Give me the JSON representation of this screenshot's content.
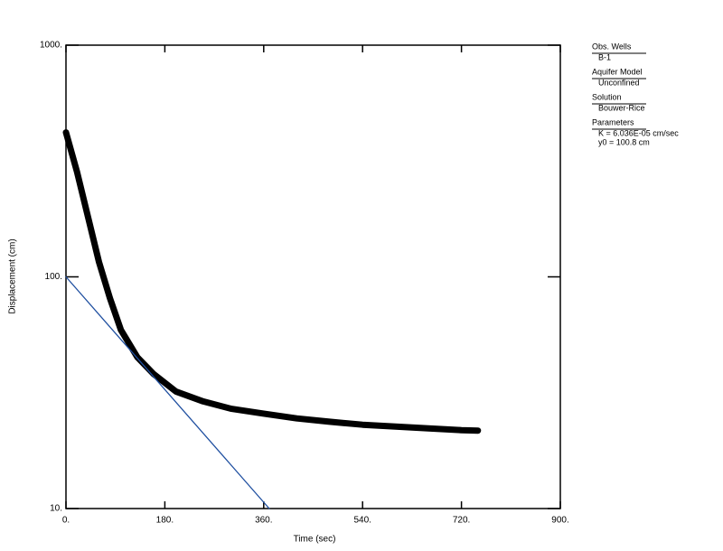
{
  "chart_data": {
    "type": "scatter",
    "x_label": "Time (sec)",
    "y_label": "Displacement (cm)",
    "xlim": [
      0,
      900
    ],
    "ylim": [
      10,
      1000
    ],
    "y_log": true,
    "xticks": [
      {
        "value": 0,
        "label": "0."
      },
      {
        "value": 180,
        "label": "180."
      },
      {
        "value": 360,
        "label": "360."
      },
      {
        "value": 540,
        "label": "540."
      },
      {
        "value": 720,
        "label": "720."
      },
      {
        "value": 900,
        "label": "900."
      }
    ],
    "yticks": [
      {
        "value": 10,
        "label": "10."
      },
      {
        "value": 100,
        "label": "100."
      },
      {
        "value": 1000,
        "label": "1000."
      }
    ],
    "series": [
      {
        "color": "#000000",
        "mode": "markers",
        "x": [
          0,
          20,
          40,
          60,
          80,
          100,
          130,
          160,
          200,
          250,
          300,
          360,
          420,
          480,
          540,
          600,
          660,
          720,
          750
        ],
        "values": [
          420,
          284,
          182,
          116,
          81,
          59,
          45,
          38,
          32,
          29,
          27,
          25.7,
          24.5,
          23.7,
          23,
          22.6,
          22.2,
          21.8,
          21.7
        ]
      },
      {
        "color": "#1f4fa0",
        "mode": "line",
        "x": [
          0,
          370
        ],
        "values": [
          100,
          10
        ]
      }
    ],
    "legend": [
      {
        "heading": "Obs. Wells",
        "lines": [
          "B-1"
        ]
      },
      {
        "heading": "Aquifer Model",
        "lines": [
          "Unconfined"
        ]
      },
      {
        "heading": "Solution",
        "lines": [
          "Bouwer-Rice"
        ]
      },
      {
        "heading": "Parameters",
        "lines": [
          "K = 6.036E-05 cm/sec",
          "y0 = 100.8 cm"
        ]
      }
    ]
  }
}
